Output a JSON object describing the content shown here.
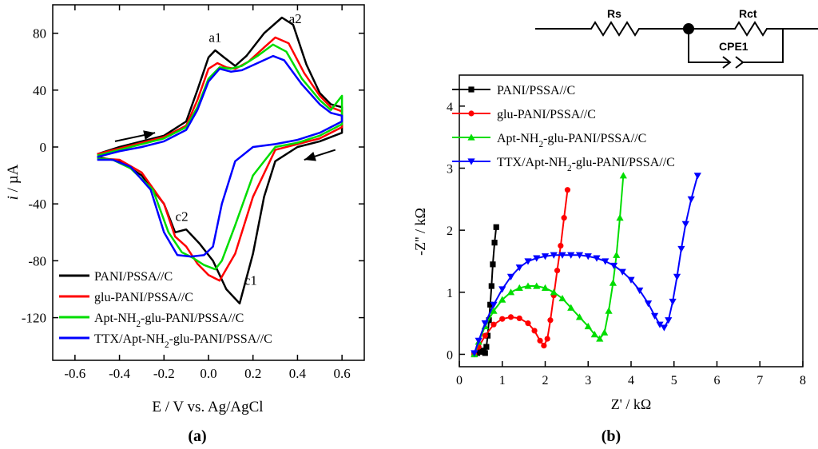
{
  "chart_data": [
    {
      "type": "line",
      "panel_label": "(a)",
      "xlabel": "E / V vs. Ag/AgCl",
      "ylabel_italic": "i",
      "ylabel_rest": " / µA",
      "xlim": [
        -0.7,
        0.7
      ],
      "ylim": [
        -150,
        100
      ],
      "xticks": [
        -0.6,
        -0.4,
        -0.2,
        0.0,
        0.2,
        0.4,
        0.6
      ],
      "xtick_labels": [
        "-0.6",
        "-0.4",
        "-0.2",
        "0.0",
        "0.2",
        "0.4",
        "0.6"
      ],
      "yticks": [
        -120,
        -80,
        -40,
        0,
        40,
        80
      ],
      "ytick_labels": [
        "-120",
        "-80",
        "-40",
        "0",
        "40",
        "80"
      ],
      "annotations": [
        {
          "text": "a1",
          "x": 0.03,
          "y": 74
        },
        {
          "text": "a2",
          "x": 0.39,
          "y": 87
        },
        {
          "text": "c2",
          "x": -0.12,
          "y": -52
        },
        {
          "text": "c1",
          "x": 0.19,
          "y": -97
        }
      ],
      "scan_arrows": [
        {
          "from": [
            -0.42,
            4
          ],
          "to": [
            -0.24,
            10
          ]
        },
        {
          "from": [
            0.57,
            -2
          ],
          "to": [
            0.43,
            -9
          ]
        }
      ],
      "legend": {
        "position": "bottom-left"
      },
      "series": [
        {
          "name": "PANI/PSSA//C",
          "legend_parts": [
            "PANI/PSSA//C"
          ],
          "color": "#000000",
          "anodic": [
            [
              -0.5,
              -5
            ],
            [
              -0.4,
              0
            ],
            [
              -0.3,
              4
            ],
            [
              -0.2,
              8
            ],
            [
              -0.1,
              18
            ],
            [
              -0.05,
              40
            ],
            [
              0.0,
              63
            ],
            [
              0.03,
              68
            ],
            [
              0.07,
              63
            ],
            [
              0.12,
              57
            ],
            [
              0.17,
              64
            ],
            [
              0.25,
              80
            ],
            [
              0.33,
              91
            ],
            [
              0.38,
              86
            ],
            [
              0.44,
              58
            ],
            [
              0.5,
              38
            ],
            [
              0.55,
              30
            ],
            [
              0.6,
              28
            ]
          ],
          "cathodic": [
            [
              0.6,
              10
            ],
            [
              0.5,
              4
            ],
            [
              0.4,
              0
            ],
            [
              0.3,
              -10
            ],
            [
              0.25,
              -35
            ],
            [
              0.2,
              -75
            ],
            [
              0.14,
              -110
            ],
            [
              0.08,
              -100
            ],
            [
              0.02,
              -80
            ],
            [
              -0.04,
              -68
            ],
            [
              -0.1,
              -58
            ],
            [
              -0.15,
              -60
            ],
            [
              -0.2,
              -40
            ],
            [
              -0.3,
              -20
            ],
            [
              -0.4,
              -10
            ],
            [
              -0.5,
              -7
            ]
          ]
        },
        {
          "name": "glu-PANI/PSSA//C",
          "legend_parts": [
            "glu-PANI/PSSA//C"
          ],
          "color": "#ff0000",
          "anodic": [
            [
              -0.5,
              -5
            ],
            [
              -0.4,
              -1
            ],
            [
              -0.3,
              3
            ],
            [
              -0.2,
              7
            ],
            [
              -0.1,
              15
            ],
            [
              -0.05,
              33
            ],
            [
              0.0,
              55
            ],
            [
              0.04,
              59
            ],
            [
              0.08,
              56
            ],
            [
              0.12,
              55
            ],
            [
              0.18,
              60
            ],
            [
              0.25,
              70
            ],
            [
              0.3,
              77
            ],
            [
              0.36,
              73
            ],
            [
              0.43,
              52
            ],
            [
              0.5,
              36
            ],
            [
              0.55,
              28
            ],
            [
              0.6,
              25
            ]
          ],
          "cathodic": [
            [
              0.6,
              14
            ],
            [
              0.5,
              6
            ],
            [
              0.4,
              2
            ],
            [
              0.3,
              -2
            ],
            [
              0.2,
              -35
            ],
            [
              0.12,
              -75
            ],
            [
              0.05,
              -94
            ],
            [
              0.0,
              -90
            ],
            [
              -0.05,
              -82
            ],
            [
              -0.1,
              -70
            ],
            [
              -0.15,
              -63
            ],
            [
              -0.2,
              -40
            ],
            [
              -0.3,
              -18
            ],
            [
              -0.4,
              -9
            ],
            [
              -0.5,
              -8
            ]
          ]
        },
        {
          "name": "Apt-NH2-glu-PANI/PSSA//C",
          "legend_parts": [
            "Apt-NH",
            "2",
            "-glu-PANI/PSSA//C"
          ],
          "color": "#00dd00",
          "anodic": [
            [
              -0.5,
              -6
            ],
            [
              -0.4,
              -2
            ],
            [
              -0.3,
              2
            ],
            [
              -0.2,
              6
            ],
            [
              -0.1,
              14
            ],
            [
              -0.05,
              28
            ],
            [
              0.0,
              48
            ],
            [
              0.05,
              56
            ],
            [
              0.1,
              55
            ],
            [
              0.15,
              57
            ],
            [
              0.22,
              64
            ],
            [
              0.29,
              72
            ],
            [
              0.35,
              67
            ],
            [
              0.42,
              48
            ],
            [
              0.5,
              33
            ],
            [
              0.55,
              26
            ],
            [
              0.6,
              36
            ]
          ],
          "cathodic": [
            [
              0.6,
              16
            ],
            [
              0.5,
              8
            ],
            [
              0.4,
              3
            ],
            [
              0.3,
              0
            ],
            [
              0.2,
              -20
            ],
            [
              0.12,
              -55
            ],
            [
              0.06,
              -80
            ],
            [
              0.03,
              -86
            ],
            [
              -0.02,
              -83
            ],
            [
              -0.07,
              -78
            ],
            [
              -0.12,
              -74
            ],
            [
              -0.18,
              -60
            ],
            [
              -0.25,
              -30
            ],
            [
              -0.35,
              -15
            ],
            [
              -0.43,
              -9
            ],
            [
              -0.5,
              -8
            ]
          ]
        },
        {
          "name": "TTX/Apt-NH2-glu-PANI/PSSA//C",
          "legend_parts": [
            "TTX/Apt-NH",
            "2",
            "-glu-PANI/PSSA//C"
          ],
          "color": "#0000ff",
          "anodic": [
            [
              -0.5,
              -7
            ],
            [
              -0.4,
              -3
            ],
            [
              -0.3,
              0
            ],
            [
              -0.2,
              4
            ],
            [
              -0.1,
              12
            ],
            [
              -0.05,
              26
            ],
            [
              0.0,
              46
            ],
            [
              0.05,
              55
            ],
            [
              0.1,
              53
            ],
            [
              0.15,
              54
            ],
            [
              0.22,
              59
            ],
            [
              0.29,
              64
            ],
            [
              0.34,
              61
            ],
            [
              0.42,
              44
            ],
            [
              0.5,
              30
            ],
            [
              0.55,
              24
            ],
            [
              0.6,
              22
            ]
          ],
          "cathodic": [
            [
              0.6,
              18
            ],
            [
              0.5,
              10
            ],
            [
              0.4,
              5
            ],
            [
              0.3,
              2
            ],
            [
              0.2,
              0
            ],
            [
              0.12,
              -10
            ],
            [
              0.06,
              -40
            ],
            [
              0.02,
              -70
            ],
            [
              -0.02,
              -76
            ],
            [
              -0.08,
              -77
            ],
            [
              -0.14,
              -76
            ],
            [
              -0.2,
              -60
            ],
            [
              -0.26,
              -30
            ],
            [
              -0.35,
              -14
            ],
            [
              -0.43,
              -9
            ],
            [
              -0.5,
              -9
            ]
          ]
        }
      ]
    },
    {
      "type": "line",
      "panel_label": "(b)",
      "xlabel": "Z' / kΩ",
      "ylabel": "-Z'' / kΩ",
      "xlim": [
        0,
        8
      ],
      "ylim": [
        -0.2,
        4.5
      ],
      "xticks": [
        0,
        1,
        2,
        3,
        4,
        5,
        6,
        7,
        8
      ],
      "xtick_labels": [
        "0",
        "1",
        "2",
        "3",
        "4",
        "5",
        "6",
        "7",
        "8"
      ],
      "yticks": [
        0,
        1,
        2,
        3,
        4
      ],
      "ytick_labels": [
        "0",
        "1",
        "2",
        "3",
        "4"
      ],
      "legend": {
        "position": "top-left"
      },
      "series": [
        {
          "name": "PANI/PSSA//C",
          "legend_parts": [
            "PANI/PSSA//C"
          ],
          "color": "#000000",
          "marker": "square",
          "points": [
            [
              0.35,
              0.0
            ],
            [
              0.42,
              0.02
            ],
            [
              0.48,
              0.04
            ],
            [
              0.53,
              0.06
            ],
            [
              0.57,
              0.04
            ],
            [
              0.6,
              0.02
            ],
            [
              0.63,
              0.12
            ],
            [
              0.66,
              0.3
            ],
            [
              0.69,
              0.55
            ],
            [
              0.72,
              0.8
            ],
            [
              0.75,
              1.1
            ],
            [
              0.78,
              1.45
            ],
            [
              0.82,
              1.8
            ],
            [
              0.86,
              2.05
            ]
          ]
        },
        {
          "name": "glu-PANI/PSSA//C",
          "legend_parts": [
            "glu-PANI/PSSA//C"
          ],
          "color": "#ff0000",
          "marker": "circle",
          "points": [
            [
              0.35,
              0.0
            ],
            [
              0.45,
              0.12
            ],
            [
              0.6,
              0.3
            ],
            [
              0.8,
              0.48
            ],
            [
              1.0,
              0.57
            ],
            [
              1.2,
              0.6
            ],
            [
              1.4,
              0.58
            ],
            [
              1.6,
              0.5
            ],
            [
              1.75,
              0.38
            ],
            [
              1.88,
              0.22
            ],
            [
              1.97,
              0.14
            ],
            [
              2.05,
              0.25
            ],
            [
              2.12,
              0.55
            ],
            [
              2.2,
              0.95
            ],
            [
              2.28,
              1.35
            ],
            [
              2.36,
              1.75
            ],
            [
              2.44,
              2.2
            ],
            [
              2.52,
              2.65
            ]
          ]
        },
        {
          "name": "Apt-NH2-glu-PANI/PSSA//C",
          "legend_parts": [
            "Apt-NH",
            "2",
            "-glu-PANI/PSSA//C"
          ],
          "color": "#00dd00",
          "marker": "triangle-up",
          "points": [
            [
              0.35,
              0.0
            ],
            [
              0.45,
              0.2
            ],
            [
              0.6,
              0.45
            ],
            [
              0.8,
              0.7
            ],
            [
              1.0,
              0.88
            ],
            [
              1.2,
              1.0
            ],
            [
              1.4,
              1.07
            ],
            [
              1.6,
              1.1
            ],
            [
              1.8,
              1.1
            ],
            [
              2.0,
              1.07
            ],
            [
              2.2,
              1.0
            ],
            [
              2.4,
              0.9
            ],
            [
              2.6,
              0.75
            ],
            [
              2.8,
              0.6
            ],
            [
              3.0,
              0.45
            ],
            [
              3.15,
              0.32
            ],
            [
              3.27,
              0.25
            ],
            [
              3.38,
              0.35
            ],
            [
              3.48,
              0.7
            ],
            [
              3.58,
              1.15
            ],
            [
              3.66,
              1.6
            ],
            [
              3.74,
              2.2
            ],
            [
              3.82,
              2.88
            ]
          ]
        },
        {
          "name": "TTX/Apt-NH2-glu-PANI/PSSA//C",
          "legend_parts": [
            "TTX/Apt-NH",
            "2",
            "-glu-PANI/PSSA//C"
          ],
          "color": "#0000ff",
          "marker": "triangle-down",
          "points": [
            [
              0.35,
              0.02
            ],
            [
              0.45,
              0.22
            ],
            [
              0.6,
              0.5
            ],
            [
              0.8,
              0.8
            ],
            [
              1.0,
              1.05
            ],
            [
              1.2,
              1.25
            ],
            [
              1.4,
              1.4
            ],
            [
              1.6,
              1.5
            ],
            [
              1.8,
              1.55
            ],
            [
              2.0,
              1.58
            ],
            [
              2.2,
              1.6
            ],
            [
              2.4,
              1.6
            ],
            [
              2.6,
              1.6
            ],
            [
              2.8,
              1.6
            ],
            [
              3.0,
              1.58
            ],
            [
              3.2,
              1.55
            ],
            [
              3.4,
              1.5
            ],
            [
              3.6,
              1.43
            ],
            [
              3.8,
              1.33
            ],
            [
              4.0,
              1.2
            ],
            [
              4.2,
              1.03
            ],
            [
              4.4,
              0.82
            ],
            [
              4.55,
              0.62
            ],
            [
              4.67,
              0.48
            ],
            [
              4.77,
              0.43
            ],
            [
              4.87,
              0.55
            ],
            [
              4.97,
              0.85
            ],
            [
              5.07,
              1.25
            ],
            [
              5.17,
              1.7
            ],
            [
              5.27,
              2.1
            ],
            [
              5.4,
              2.5
            ],
            [
              5.55,
              2.88
            ]
          ]
        }
      ]
    }
  ],
  "circuit": {
    "rs_label": "Rs",
    "rct_label": "Rct",
    "cpe_label": "CPE1"
  }
}
